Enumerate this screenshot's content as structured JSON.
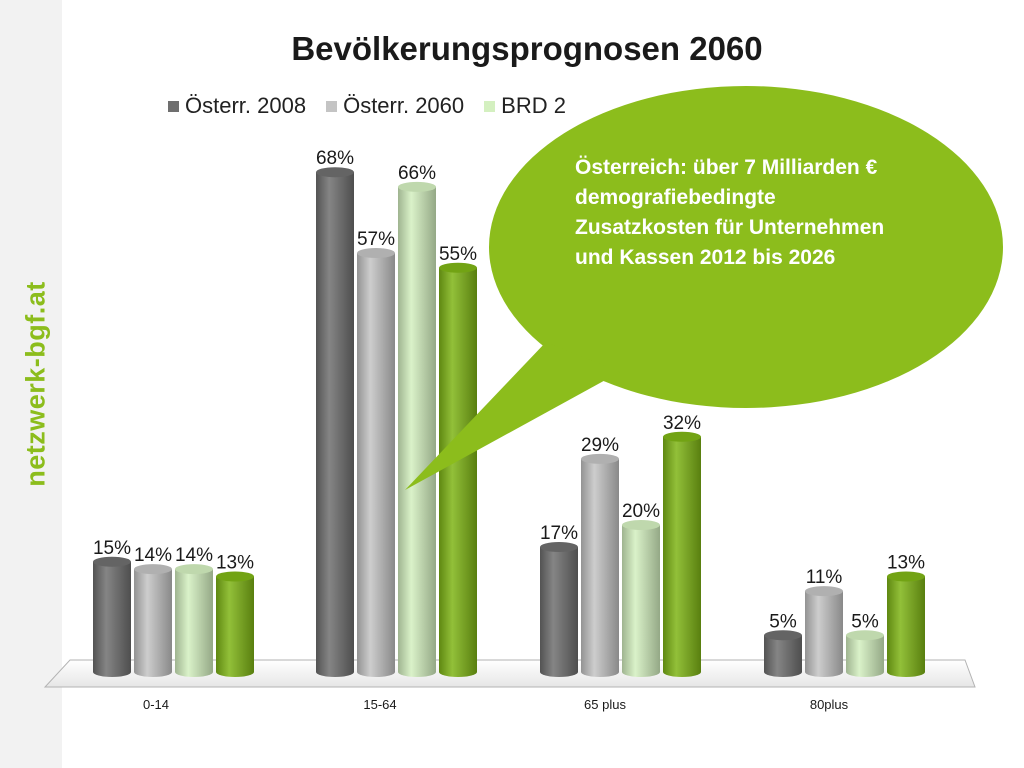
{
  "side_brand": "netzwerk-bgf.at",
  "colors": {
    "accent": "#8cbd1c",
    "series": [
      "#6f6f6f",
      "#c4c4c4",
      "#d4f0c0",
      "#7fb516"
    ]
  },
  "callout": {
    "text": "Österreich: über 7 Milliarden € demografiebedingte Zusatzkosten für Unternehmen und Kassen 2012 bis 2026"
  },
  "chart_data": {
    "type": "bar",
    "title": "Bevölkerungsprognosen 2060",
    "categories": [
      "0-14",
      "15-64",
      "65 plus",
      "80plus"
    ],
    "series": [
      {
        "name": "Österr. 2008",
        "values": [
          15,
          68,
          17,
          5
        ]
      },
      {
        "name": "Österr. 2060",
        "values": [
          14,
          57,
          29,
          11
        ]
      },
      {
        "name": "BRD 2",
        "values": [
          14,
          66,
          20,
          5
        ]
      },
      {
        "name": "",
        "values": [
          13,
          55,
          32,
          13
        ]
      }
    ],
    "data_labels": [
      [
        "15%",
        "68%",
        "17%",
        "5%"
      ],
      [
        "14%",
        "57%",
        "29%",
        "11%"
      ],
      [
        "14%",
        "66%",
        "20%",
        "5%"
      ],
      [
        "13%",
        "55%",
        "32%",
        "13%"
      ]
    ],
    "value_unit": "%",
    "ylim": [
      0,
      70
    ],
    "grid": false,
    "legend_position": "top"
  }
}
